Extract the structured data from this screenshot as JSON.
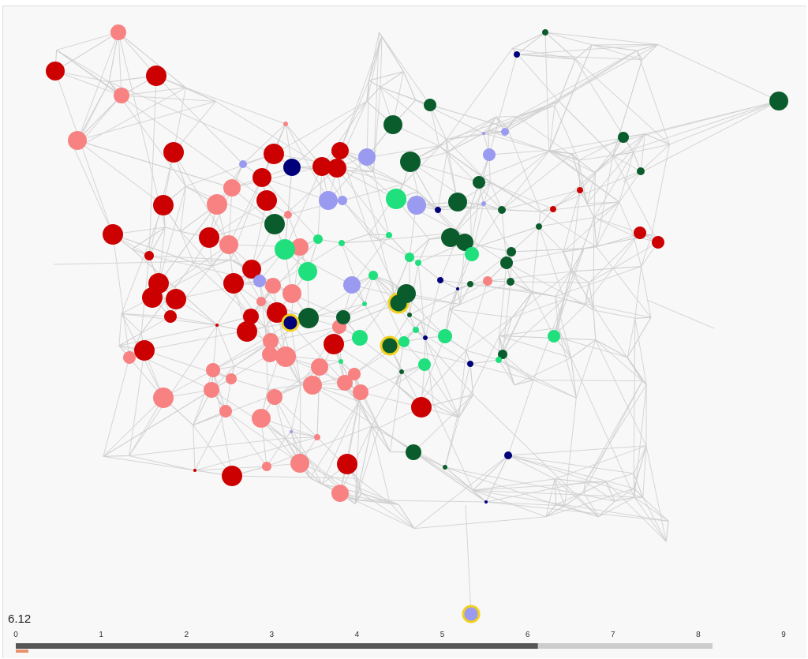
{
  "slider": {
    "value": 6.12,
    "ticks": [
      0,
      1,
      2,
      3,
      4,
      5,
      6,
      7,
      8,
      9
    ]
  }
}
